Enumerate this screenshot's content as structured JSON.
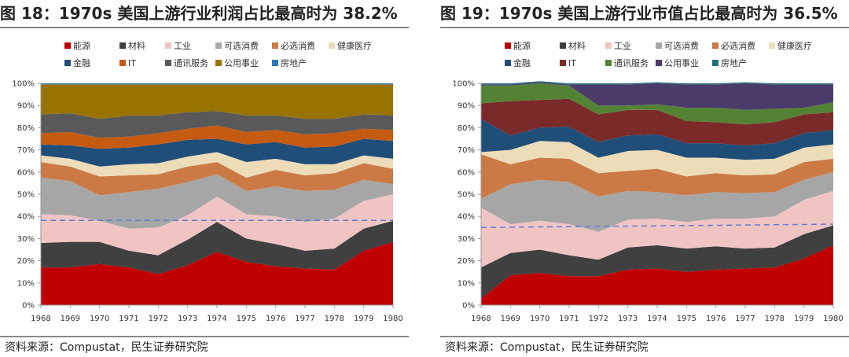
{
  "sectors": [
    {
      "name": "能源",
      "color": "#c00000"
    },
    {
      "name": "材料",
      "color": "#404040"
    },
    {
      "name": "工业",
      "color": "#f1c4c4"
    },
    {
      "name": "可选消费",
      "color": "#a6a6a6"
    },
    {
      "name": "必选消费",
      "color": "#cc7a45"
    },
    {
      "name": "健康医疗",
      "color": "#ecdcb8"
    },
    {
      "name": "金融",
      "color": "#1f4e79"
    },
    {
      "name": "IT",
      "color": "#c55a11"
    },
    {
      "name": "通讯服务",
      "color": "#595959"
    },
    {
      "name": "公用事业",
      "color": "#997300"
    },
    {
      "name": "房地产",
      "color": "#2e75b6"
    }
  ],
  "left": {
    "title": "图 18：1970s 美国上游行业利润占比最高时为 38.2%",
    "source": "资料来源：Compustat，民生证券研究院"
  },
  "right": {
    "title": "图 19：1970s 美国上游行业市值占比最高时为 36.5%",
    "source": "资料来源：Compustat，民生证券研究院"
  },
  "chart_data": [
    {
      "type": "area",
      "stacked": true,
      "title": "图 18：1970s 美国上游行业利润占比最高时为 38.2%",
      "categories": [
        "1968",
        "1969",
        "1970",
        "1971",
        "1972",
        "1973",
        "1974",
        "1975",
        "1976",
        "1977",
        "1978",
        "1979",
        "1980"
      ],
      "ylim": [
        0,
        100
      ],
      "yticks": [
        "0%",
        "10%",
        "20%",
        "30%",
        "40%",
        "50%",
        "60%",
        "70%",
        "80%",
        "90%",
        "100%"
      ],
      "reference_line": 38.2,
      "series": [
        {
          "name": "能源",
          "color": "#c00000",
          "values": [
            17,
            17,
            18.5,
            17,
            14,
            18,
            24,
            19.5,
            17.5,
            16.5,
            16,
            24.5,
            28.5
          ]
        },
        {
          "name": "材料",
          "color": "#404040",
          "values": [
            11,
            11.5,
            10,
            7.5,
            8.5,
            11.5,
            13.5,
            10.5,
            10,
            8,
            9.5,
            10,
            9.5
          ]
        },
        {
          "name": "工业",
          "color": "#f1c4c4",
          "values": [
            13,
            12,
            9.5,
            10,
            12.5,
            11,
            11.5,
            11,
            12.5,
            13,
            13.5,
            12.5,
            12
          ]
        },
        {
          "name": "可选消费",
          "color": "#a6a6a6",
          "values": [
            16.5,
            15.5,
            11.5,
            16.5,
            17.5,
            15,
            10,
            10.5,
            13.5,
            14,
            13,
            9.5,
            4.5
          ]
        },
        {
          "name": "必选消费",
          "color": "#cc7a45",
          "values": [
            7,
            6.5,
            8.5,
            7.5,
            6.5,
            7,
            5.5,
            6,
            7.5,
            7,
            7.5,
            7.5,
            7
          ]
        },
        {
          "name": "健康医疗",
          "color": "#ecdcb8",
          "values": [
            3,
            3.5,
            4.5,
            5,
            5,
            4.5,
            4.5,
            7,
            5,
            5,
            4,
            3.5,
            4.5
          ]
        },
        {
          "name": "金融",
          "color": "#1f4e79",
          "values": [
            5,
            6,
            8,
            7.5,
            8.5,
            7.5,
            6,
            8,
            7.5,
            7.5,
            8,
            7.5,
            8
          ]
        },
        {
          "name": "IT",
          "color": "#c55a11",
          "values": [
            5,
            6,
            5,
            5,
            5,
            5,
            6,
            5.5,
            5.5,
            6,
            6,
            4.5,
            5
          ]
        },
        {
          "name": "通讯服务",
          "color": "#595959",
          "values": [
            8.5,
            8.5,
            8.5,
            9.5,
            8,
            7.5,
            6.5,
            7.5,
            6.5,
            7,
            6.5,
            6.5,
            6.5
          ]
        },
        {
          "name": "公用事业",
          "color": "#997300",
          "values": [
            13.5,
            13,
            15.5,
            14,
            14,
            12.5,
            12,
            14,
            14,
            15.5,
            15.5,
            13.5,
            14
          ]
        },
        {
          "name": "房地产",
          "color": "#2e75b6",
          "values": [
            0.5,
            0.5,
            0.5,
            0.5,
            0.5,
            0.5,
            0.5,
            0.5,
            0.5,
            0.5,
            0.5,
            0.5,
            0.5
          ]
        }
      ]
    },
    {
      "type": "area",
      "stacked": true,
      "title": "图 19：1970s 美国上游行业市值占比最高时为 36.5%",
      "categories": [
        "1968",
        "1969",
        "1970",
        "1971",
        "1972",
        "1973",
        "1974",
        "1975",
        "1976",
        "1977",
        "1978",
        "1979",
        "1980"
      ],
      "ylim": [
        0,
        100
      ],
      "yticks": [
        "0%",
        "10%",
        "20%",
        "30%",
        "40%",
        "50%",
        "60%",
        "70%",
        "80%",
        "90%",
        "100%"
      ],
      "reference_line": [
        35,
        36.5
      ],
      "series": [
        {
          "name": "能源",
          "color": "#c00000",
          "values": [
            3,
            13.5,
            14.5,
            13,
            13,
            16,
            16.5,
            15,
            16,
            16.5,
            17,
            21,
            27
          ]
        },
        {
          "name": "材料",
          "color": "#404040",
          "values": [
            14,
            10,
            10.5,
            9.5,
            7.5,
            10,
            10.5,
            10.5,
            10.5,
            9,
            9,
            11,
            9
          ]
        },
        {
          "name": "工业",
          "color": "#f1c4c4",
          "values": [
            27,
            13,
            13,
            14,
            12.5,
            12.5,
            12,
            12,
            12.5,
            13.5,
            14,
            15.5,
            15.5
          ]
        },
        {
          "name": "可选消费",
          "color": "#a6a6a6",
          "values": [
            4,
            18,
            18.5,
            19,
            16,
            13,
            12,
            12,
            12,
            11.5,
            11,
            9,
            8.5
          ]
        },
        {
          "name": "必选消费",
          "color": "#cc7a45",
          "values": [
            20,
            9,
            10,
            10.5,
            10.5,
            9,
            10.5,
            8.5,
            8.5,
            8,
            8,
            8,
            6
          ]
        },
        {
          "name": "健康医疗",
          "color": "#ecdcb8",
          "values": [
            1,
            6.5,
            7.5,
            7.5,
            7,
            9,
            8.5,
            8.5,
            7,
            7,
            7,
            6.5,
            6.5
          ]
        },
        {
          "name": "金融",
          "color": "#1f4e79",
          "values": [
            15,
            6.5,
            6,
            7,
            7,
            7,
            7,
            6.5,
            6.5,
            6.5,
            7,
            6.5,
            6.5
          ]
        },
        {
          "name": "IT",
          "color": "#7b2a2a",
          "values": [
            7,
            15.5,
            12.5,
            12.5,
            12.5,
            11.5,
            11,
            10,
            9.5,
            9.5,
            9.5,
            8.5,
            8
          ]
        },
        {
          "name": "通讯服务",
          "color": "#548235",
          "values": [
            8,
            7,
            7.5,
            6,
            4,
            2,
            2.5,
            6,
            6.5,
            6.5,
            6,
            3,
            4.5
          ]
        },
        {
          "name": "公用事业",
          "color": "#4b3b6b",
          "values": [
            0.5,
            0.5,
            0.5,
            0.5,
            9.5,
            9.5,
            9.5,
            10.5,
            10.5,
            12,
            11,
            10.5,
            8
          ]
        },
        {
          "name": "房地产",
          "color": "#1f6f78",
          "values": [
            0.5,
            0.5,
            0.5,
            0.5,
            0.5,
            0.5,
            0.5,
            0.5,
            0.5,
            0.5,
            0.5,
            0.5,
            0.5
          ]
        }
      ]
    }
  ]
}
